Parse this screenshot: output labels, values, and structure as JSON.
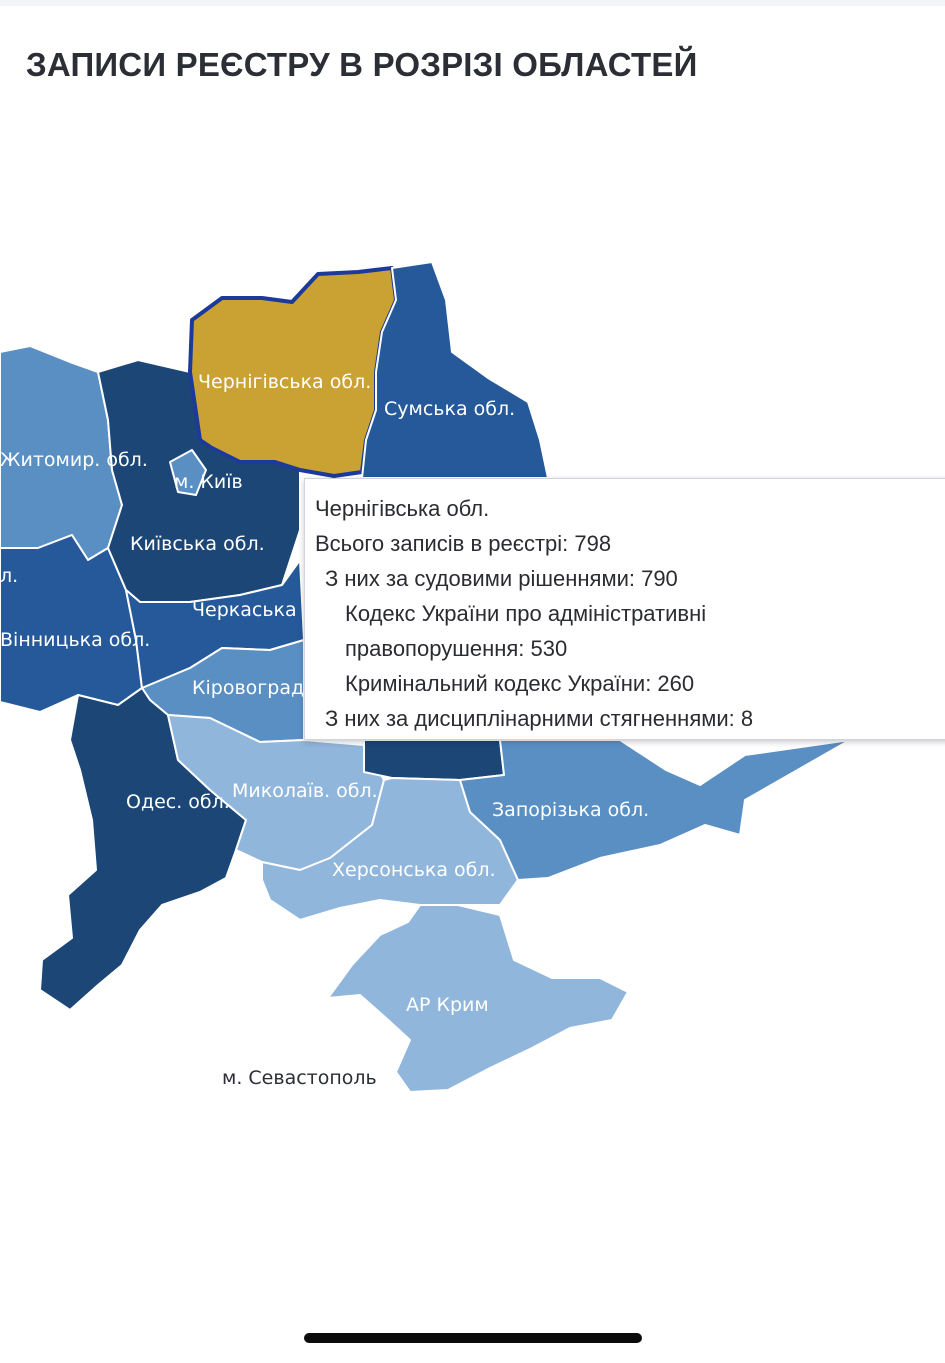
{
  "page": {
    "title": "ЗАПИСИ РЕЄСТРУ В РОЗРІЗІ ОБЛАСТЕЙ"
  },
  "colors": {
    "highlight": "#c9a233",
    "darkest": "#1c4676",
    "dark": "#25599a",
    "medium": "#3f72ad",
    "light": "#5a8fc4",
    "lighter": "#91b6db",
    "selected_border": "#1c3a9a"
  },
  "map": {
    "regions": [
      {
        "id": "zhytomyr",
        "label": "Житомир. обл."
      },
      {
        "id": "vinnytsia",
        "label": "Вінницька обл."
      },
      {
        "id": "kyiv-oblast",
        "label": "Київська обл."
      },
      {
        "id": "kyiv-city",
        "label": "м. Київ"
      },
      {
        "id": "chernihiv",
        "label": "Чернігівська обл."
      },
      {
        "id": "sumy",
        "label": "Сумська обл."
      },
      {
        "id": "cherkasy",
        "label": "Черкаська"
      },
      {
        "id": "kirovohrad",
        "label": "Кіровоград"
      },
      {
        "id": "odesa",
        "label": "Одес. обл."
      },
      {
        "id": "mykolaiv",
        "label": "Миколаїв. обл."
      },
      {
        "id": "kherson",
        "label": "Херсонська обл."
      },
      {
        "id": "zaporizhzhia",
        "label": "Запорізька обл."
      },
      {
        "id": "crimea",
        "label": "АР Крим"
      },
      {
        "id": "sevastopol",
        "label": "м. Севастополь"
      }
    ],
    "extra_labels": [
      "л."
    ]
  },
  "tooltip": {
    "region": "Чернігівська обл.",
    "total": "Всього записів в реєстрі: 798",
    "court": "З них за судовими рішеннями: 790",
    "admin_code_line1": "Кодекс України про адміністративні",
    "admin_code_line2": "правопорушення: 530",
    "criminal_code": "Кримінальний кодекс України: 260",
    "disciplinary": "З них за дисциплінарними стягненнями: 8"
  }
}
